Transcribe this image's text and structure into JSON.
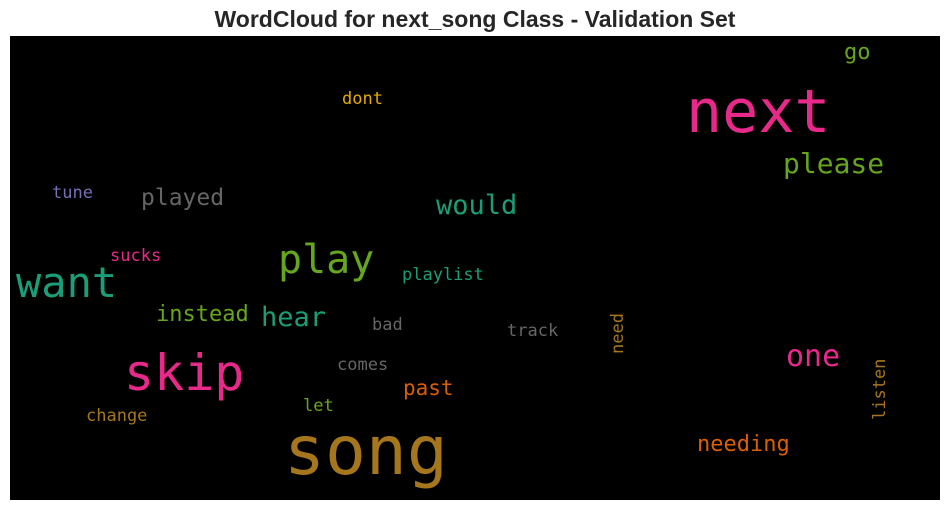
{
  "chart_data": {
    "type": "wordcloud",
    "title": "WordCloud for next_song Class - Validation Set",
    "background": "#000000",
    "words": [
      {
        "text": "song",
        "color": "#a6761d",
        "orientation": "horizontal"
      },
      {
        "text": "next",
        "color": "#e7298a",
        "orientation": "horizontal"
      },
      {
        "text": "skip",
        "color": "#e7298a",
        "orientation": "horizontal"
      },
      {
        "text": "want",
        "color": "#1b9e77",
        "orientation": "horizontal"
      },
      {
        "text": "play",
        "color": "#66a61e",
        "orientation": "horizontal"
      },
      {
        "text": "please",
        "color": "#66a61e",
        "orientation": "horizontal"
      },
      {
        "text": "one",
        "color": "#e7298a",
        "orientation": "horizontal"
      },
      {
        "text": "would",
        "color": "#1b9e77",
        "orientation": "horizontal"
      },
      {
        "text": "hear",
        "color": "#1b9e77",
        "orientation": "horizontal"
      },
      {
        "text": "played",
        "color": "#666666",
        "orientation": "horizontal"
      },
      {
        "text": "instead",
        "color": "#66a61e",
        "orientation": "horizontal"
      },
      {
        "text": "needing",
        "color": "#d95f02",
        "orientation": "horizontal"
      },
      {
        "text": "past",
        "color": "#d95f02",
        "orientation": "horizontal"
      },
      {
        "text": "go",
        "color": "#66a61e",
        "orientation": "horizontal"
      },
      {
        "text": "dont",
        "color": "#e6ab02",
        "orientation": "horizontal"
      },
      {
        "text": "tune",
        "color": "#7570b3",
        "orientation": "horizontal"
      },
      {
        "text": "sucks",
        "color": "#e7298a",
        "orientation": "horizontal"
      },
      {
        "text": "playlist",
        "color": "#1b9e77",
        "orientation": "horizontal"
      },
      {
        "text": "bad",
        "color": "#666666",
        "orientation": "horizontal"
      },
      {
        "text": "track",
        "color": "#666666",
        "orientation": "horizontal"
      },
      {
        "text": "comes",
        "color": "#666666",
        "orientation": "horizontal"
      },
      {
        "text": "change",
        "color": "#a6761d",
        "orientation": "horizontal"
      },
      {
        "text": "let",
        "color": "#66a61e",
        "orientation": "horizontal"
      },
      {
        "text": "need",
        "color": "#a6761d",
        "orientation": "vertical"
      },
      {
        "text": "listen",
        "color": "#a6761d",
        "orientation": "vertical"
      }
    ]
  }
}
